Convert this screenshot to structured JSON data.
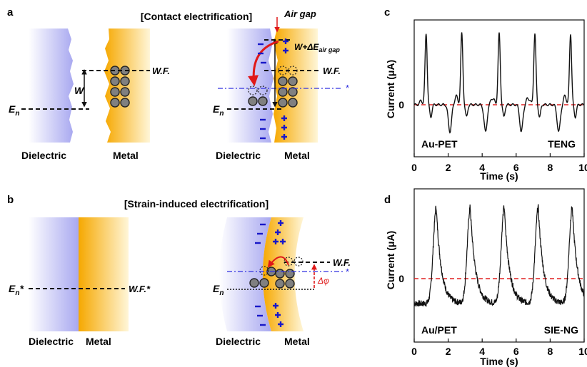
{
  "panels": {
    "a": {
      "letter": "a",
      "title": "[Contact electrification]",
      "left": {
        "en": "E",
        "en_sub": "n",
        "wf": "W.F.",
        "w": "W",
        "dielectric": "Dielectric",
        "metal": "Metal"
      },
      "right": {
        "air_gap": "Air gap",
        "w_delta": "W+ΔE",
        "w_delta_sub": "air gap",
        "wf": "W.F.",
        "en": "E",
        "en_sub": "n",
        "star": "*",
        "dielectric": "Dielectric",
        "metal": "Metal"
      }
    },
    "b": {
      "letter": "b",
      "title": "[Strain-induced electrification]",
      "left": {
        "en": "E",
        "en_sub": "n",
        "en_star": "*",
        "wf_star": "W.F.*",
        "dielectric": "Dielectric",
        "metal": "Metal"
      },
      "right": {
        "wf": "W.F.",
        "star": "*",
        "dphi": "Δφ",
        "en": "E",
        "en_sub": "n",
        "dielectric": "Dielectric",
        "metal": "Metal"
      }
    },
    "c": {
      "letter": "c",
      "ylabel": "Current (μA)",
      "xlabel": "Time (s)",
      "sample": "Au-PET",
      "device": "TENG",
      "zero_label": "0",
      "xticks": [
        "0",
        "2",
        "4",
        "6",
        "8",
        "10"
      ]
    },
    "d": {
      "letter": "d",
      "ylabel": "Current (μA)",
      "xlabel": "Time (s)",
      "sample": "Au/PET",
      "device": "SIE-NG",
      "zero_label": "0",
      "xticks": [
        "0",
        "2",
        "4",
        "6",
        "8",
        "10"
      ]
    }
  },
  "colors": {
    "dielectric": "#b0b0f0",
    "metal": "#f5b010",
    "ref_line": "#e02020",
    "star_line": "#3030e0",
    "charge": "#1818c8",
    "arrow": "#e01818",
    "signal": "#111111"
  },
  "chart_data": [
    {
      "type": "line",
      "panel": "c",
      "xlabel": "Time (s)",
      "ylabel": "Current (μA)",
      "xlim": [
        0,
        10
      ],
      "x_ticks": [
        0,
        2,
        4,
        6,
        8,
        10
      ],
      "y_ticks": [
        0
      ],
      "reference_line": 0,
      "series": [
        {
          "pulse_times_pos": [
            0.7,
            2.8,
            5.0,
            7.1,
            9.2
          ],
          "pulse_times_neg": [
            2.1,
            4.2,
            6.3,
            8.5
          ],
          "peak_pos": 1.0,
          "peak_neg": -0.4
        }
      ]
    },
    {
      "type": "line",
      "panel": "d",
      "xlabel": "Time (s)",
      "ylabel": "Current (μA)",
      "xlim": [
        0,
        10
      ],
      "x_ticks": [
        0,
        2,
        4,
        6,
        8,
        10
      ],
      "y_ticks": [
        0
      ],
      "reference_line": 0,
      "series": [
        {
          "pulse_times": [
            1.3,
            3.3,
            5.3,
            7.3,
            9.3
          ],
          "peak": 1.0,
          "baseline": -0.35
        }
      ]
    }
  ]
}
